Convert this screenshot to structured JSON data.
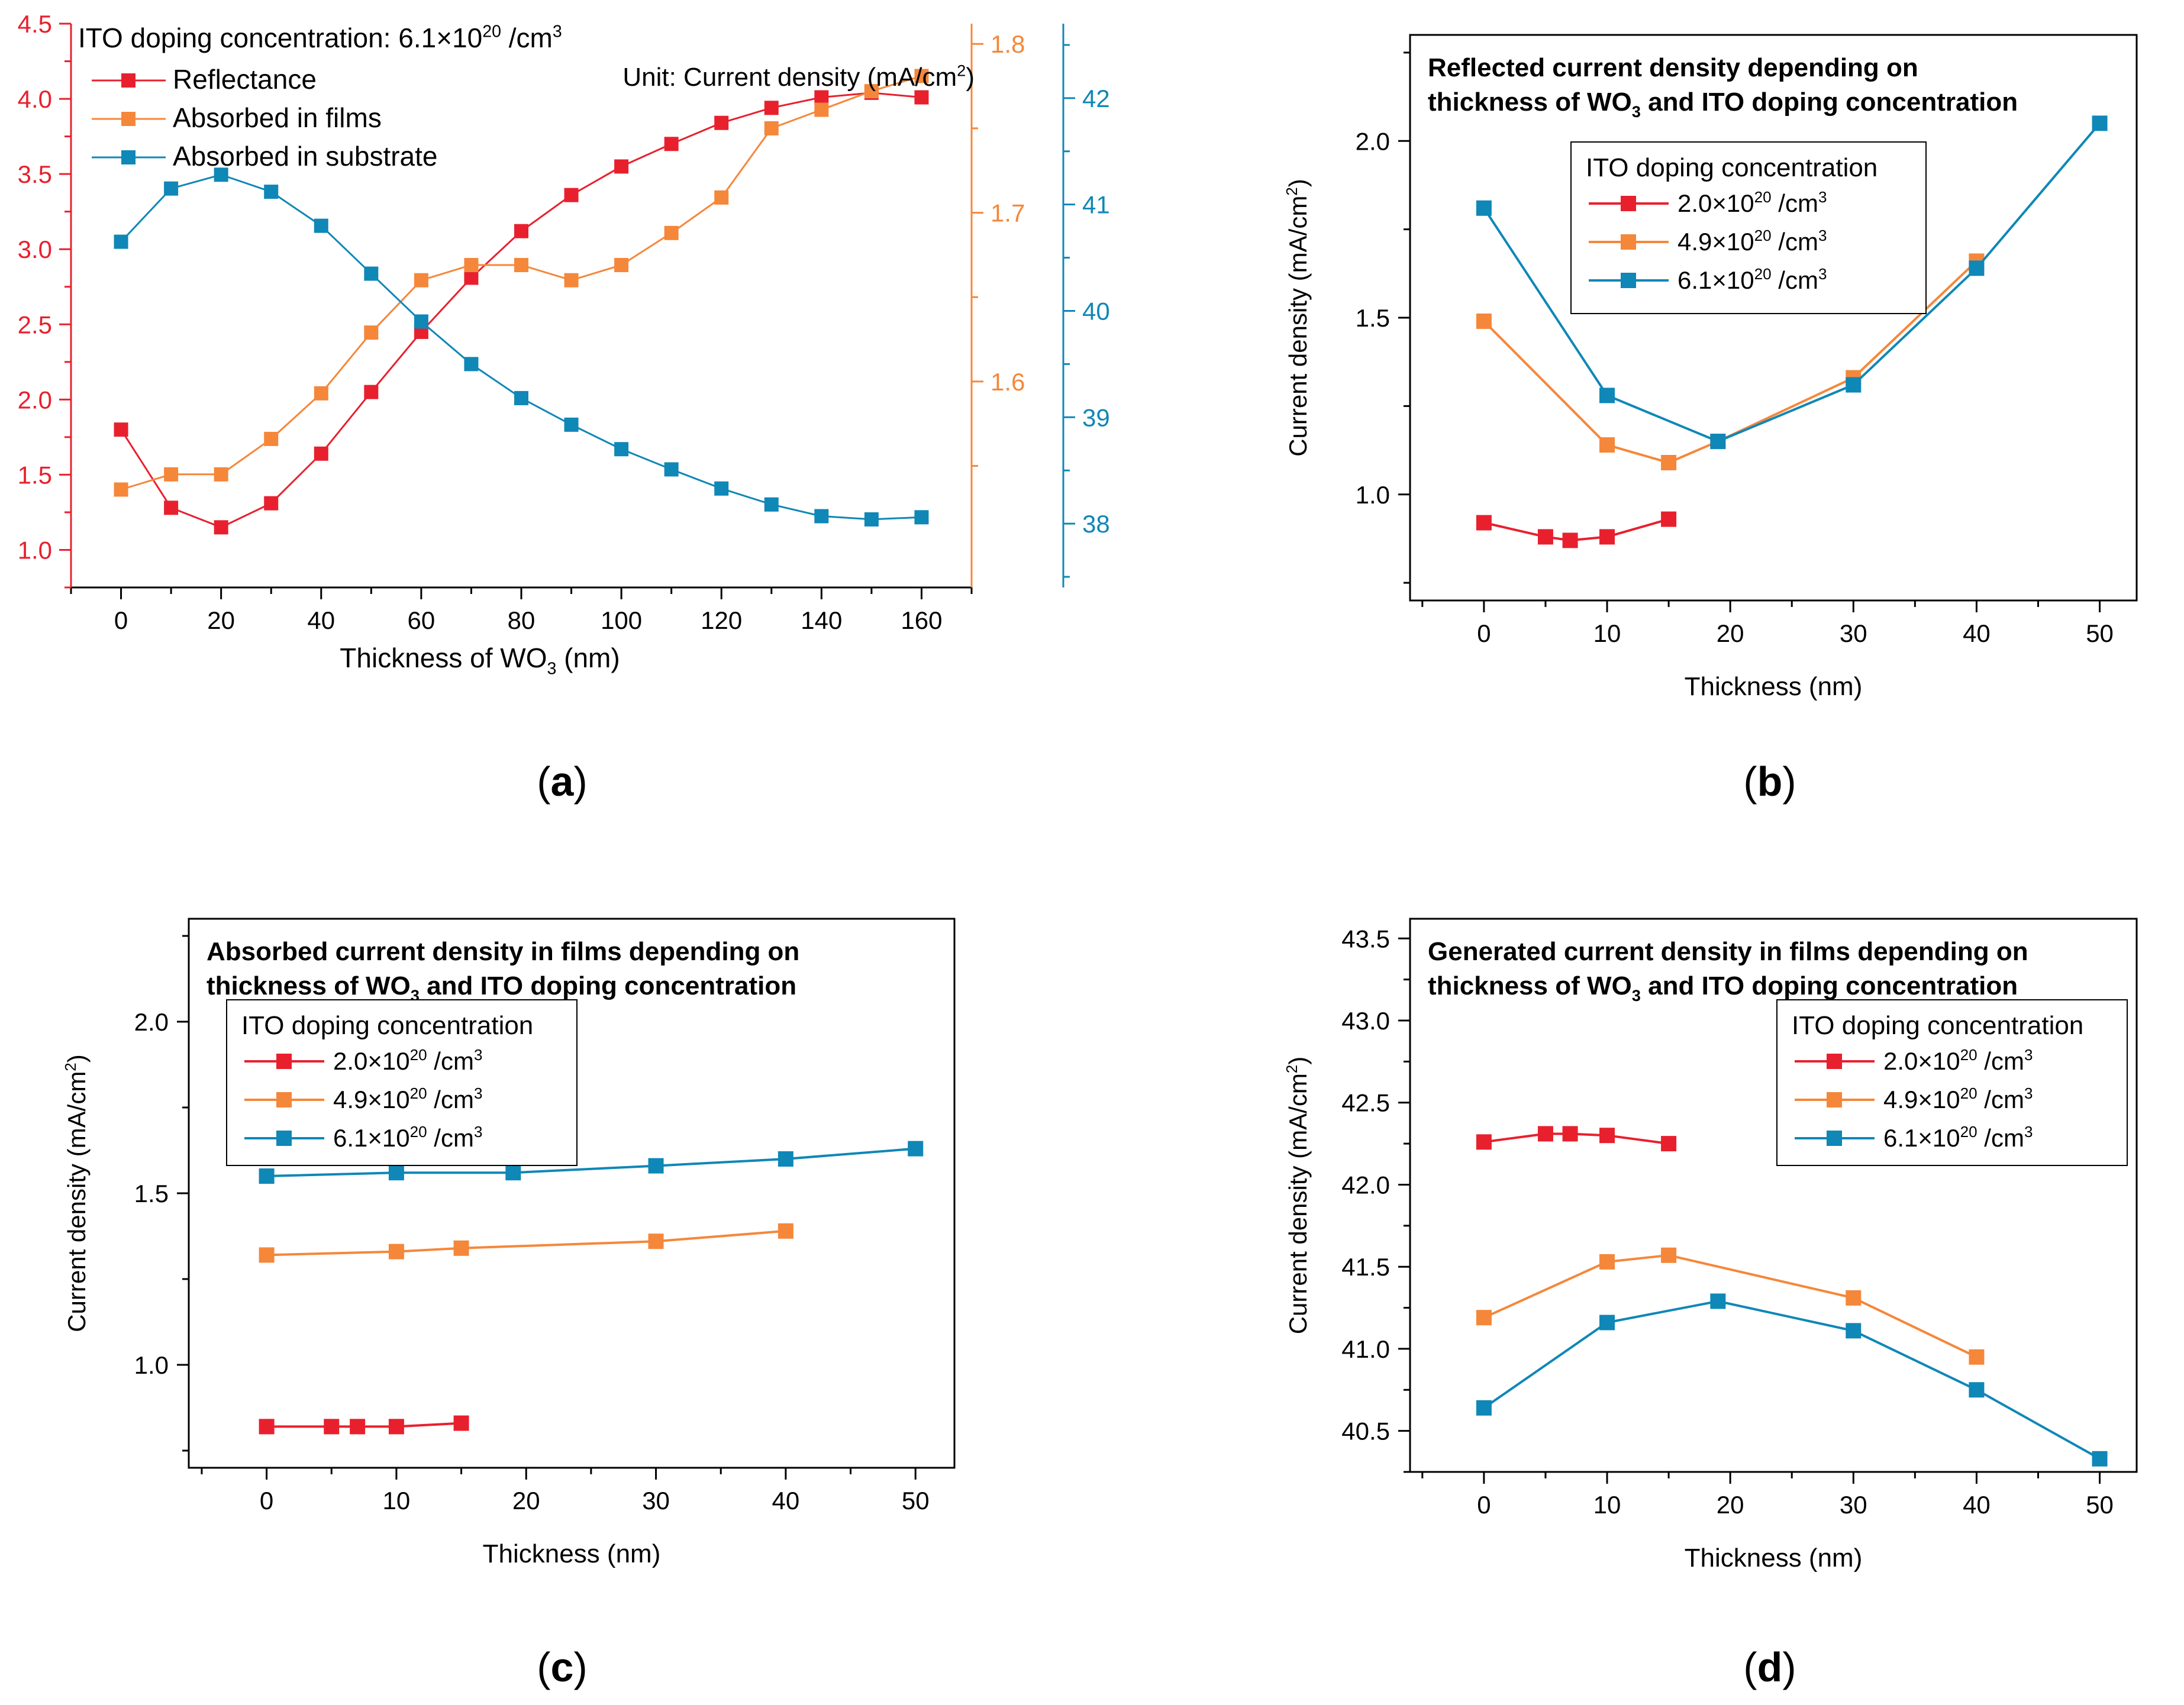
{
  "colors": {
    "red": "#e8202e",
    "orange": "#f5873a",
    "blue": "#0f87b7",
    "axis": "#000000",
    "panel_a_left_axis": "#e8202e",
    "panel_a_right_axis1": "#f5873a",
    "panel_a_right_axis2": "#0f87b7"
  },
  "chart_data": [
    {
      "id": "a",
      "type": "line",
      "caption_letter": "a",
      "caption": "(a)",
      "annotation": {
        "prefix": "ITO doping concentration: 6.1×10",
        "sup": "20",
        "suffix": " /cm",
        "sup2": "3"
      },
      "unit_note": {
        "text": "Unit: Current density (mA/cm",
        "sup": "2",
        "close": ")"
      },
      "xlabel": {
        "text": "Thickness of WO",
        "sub": "3",
        "after": " (nm)"
      },
      "xlim": [
        -10,
        170
      ],
      "x_ticks": [
        "0",
        "20",
        "40",
        "60",
        "80",
        "100",
        "120",
        "140",
        "160"
      ],
      "axes": {
        "left": {
          "lim": [
            0.75,
            4.5
          ],
          "ticks": [
            "1.0",
            "1.5",
            "2.0",
            "2.5",
            "3.0",
            "3.5",
            "4.0",
            "4.5"
          ],
          "color_key": "red"
        },
        "right1": {
          "lim": [
            1.478,
            1.812
          ],
          "ticks": [
            "1.6",
            "1.7",
            "1.8"
          ],
          "color_key": "orange"
        },
        "right2": {
          "lim": [
            37.4,
            42.7
          ],
          "ticks": [
            "38",
            "39",
            "40",
            "41",
            "42"
          ],
          "color_key": "blue"
        }
      },
      "series": [
        {
          "name": "Reflectance",
          "color_key": "red",
          "axis": "left",
          "x": [
            0,
            10,
            20,
            30,
            40,
            50,
            60,
            70,
            80,
            90,
            100,
            110,
            120,
            130,
            140,
            150,
            160
          ],
          "y": [
            1.8,
            1.28,
            1.15,
            1.31,
            1.64,
            2.05,
            2.45,
            2.81,
            3.12,
            3.36,
            3.55,
            3.7,
            3.84,
            3.94,
            4.01,
            4.04,
            4.01
          ]
        },
        {
          "name": "Absorbed in films",
          "color_key": "orange",
          "axis": "right1",
          "x": [
            0,
            10,
            20,
            30,
            40,
            50,
            60,
            70,
            80,
            90,
            100,
            110,
            120,
            130,
            140,
            150,
            160
          ],
          "y": [
            1.536,
            1.545,
            1.545,
            1.566,
            1.593,
            1.629,
            1.66,
            1.669,
            1.669,
            1.66,
            1.669,
            1.688,
            1.709,
            1.75,
            1.761,
            1.772,
            1.781
          ]
        },
        {
          "name": "Absorbed in substrate",
          "color_key": "blue",
          "axis": "right2",
          "x": [
            0,
            10,
            20,
            30,
            40,
            50,
            60,
            70,
            80,
            90,
            100,
            110,
            120,
            130,
            140,
            150,
            160
          ],
          "y": [
            40.65,
            41.15,
            41.28,
            41.12,
            40.8,
            40.35,
            39.9,
            39.5,
            39.18,
            38.93,
            38.7,
            38.51,
            38.33,
            38.18,
            38.07,
            38.04,
            38.06
          ]
        }
      ]
    },
    {
      "id": "b",
      "type": "line",
      "caption_letter": "b",
      "caption": "(b)",
      "title_line1": "Reflected current density depending on",
      "title_line2": {
        "pre": "thickness of WO",
        "sub": "3",
        "post": " and ITO doping concentration"
      },
      "ylabel": {
        "text": "Current density (mA/cm",
        "sup": "2",
        "close": ")"
      },
      "xlabel": "Thickness (nm)",
      "legend_title": "ITO doping concentration",
      "xlim": [
        -6,
        53
      ],
      "ylim": [
        0.7,
        2.3
      ],
      "x_ticks": [
        "0",
        "10",
        "20",
        "30",
        "40",
        "50"
      ],
      "y_ticks": [
        "1.0",
        "1.5",
        "2.0"
      ],
      "series": [
        {
          "name": "2.0×10^20 /cm^3",
          "label_pre": "2.0×10",
          "label_sup": "20",
          "label_post": " /cm",
          "label_sup2": "3",
          "color_key": "red",
          "x": [
            0,
            5,
            7,
            10,
            15
          ],
          "y": [
            0.92,
            0.88,
            0.87,
            0.88,
            0.93
          ]
        },
        {
          "name": "4.9×10^20 /cm^3",
          "label_pre": "4.9×10",
          "label_sup": "20",
          "label_post": " /cm",
          "label_sup2": "3",
          "color_key": "orange",
          "x": [
            0,
            10,
            15,
            19,
            30,
            40
          ],
          "y": [
            1.49,
            1.14,
            1.09,
            1.15,
            1.33,
            1.66
          ]
        },
        {
          "name": "6.1×10^20 /cm^3",
          "label_pre": "6.1×10",
          "label_sup": "20",
          "label_post": " /cm",
          "label_sup2": "3",
          "color_key": "blue",
          "x": [
            0,
            10,
            19,
            30,
            40,
            50
          ],
          "y": [
            1.81,
            1.28,
            1.15,
            1.31,
            1.64,
            2.05
          ]
        }
      ]
    },
    {
      "id": "c",
      "type": "line",
      "caption_letter": "c",
      "caption": "(c)",
      "title_line1": "Absorbed current density in films depending on",
      "title_line2": {
        "pre": "thickness of WO",
        "sub": "3",
        "post": " and ITO doping concentration"
      },
      "ylabel": {
        "text": "Current density (mA/cm",
        "sup": "2",
        "close": ")"
      },
      "xlabel": "Thickness (nm)",
      "legend_title": "ITO doping concentration",
      "xlim": [
        -6,
        53
      ],
      "ylim": [
        0.7,
        2.3
      ],
      "x_ticks": [
        "0",
        "10",
        "20",
        "30",
        "40",
        "50"
      ],
      "y_ticks": [
        "1.0",
        "1.5",
        "2.0"
      ],
      "series": [
        {
          "name": "2.0×10^20 /cm^3",
          "label_pre": "2.0×10",
          "label_sup": "20",
          "label_post": " /cm",
          "label_sup2": "3",
          "color_key": "red",
          "x": [
            0,
            5,
            7,
            10,
            15
          ],
          "y": [
            0.82,
            0.82,
            0.82,
            0.82,
            0.83
          ]
        },
        {
          "name": "4.9×10^20 /cm^3",
          "label_pre": "4.9×10",
          "label_sup": "20",
          "label_post": " /cm",
          "label_sup2": "3",
          "color_key": "orange",
          "x": [
            0,
            10,
            15,
            30,
            40
          ],
          "y": [
            1.32,
            1.33,
            1.34,
            1.36,
            1.39
          ]
        },
        {
          "name": "6.1×10^20 /cm^3",
          "label_pre": "6.1×10",
          "label_sup": "20",
          "label_post": " /cm",
          "label_sup2": "3",
          "color_key": "blue",
          "x": [
            0,
            10,
            19,
            30,
            40,
            50
          ],
          "y": [
            1.55,
            1.56,
            1.56,
            1.58,
            1.6,
            1.63
          ]
        }
      ]
    },
    {
      "id": "d",
      "type": "line",
      "caption_letter": "d",
      "caption": "(d)",
      "title_line1": "Generated current density in films depending on",
      "title_line2": {
        "pre": "thickness of WO",
        "sub": "3",
        "post": " and ITO doping concentration"
      },
      "ylabel": {
        "text": "Current density (mA/cm",
        "sup": "2",
        "close": ")"
      },
      "xlabel": "Thickness (nm)",
      "legend_title": "ITO doping concentration",
      "xlim": [
        -6,
        53
      ],
      "ylim": [
        40.25,
        43.62
      ],
      "x_ticks": [
        "0",
        "10",
        "20",
        "30",
        "40",
        "50"
      ],
      "y_ticks": [
        "40.5",
        "41.0",
        "41.5",
        "42.0",
        "42.5",
        "43.0",
        "43.5"
      ],
      "series": [
        {
          "name": "2.0×10^20 /cm^3",
          "label_pre": "2.0×10",
          "label_sup": "20",
          "label_post": " /cm",
          "label_sup2": "3",
          "color_key": "red",
          "x": [
            0,
            5,
            7,
            10,
            15
          ],
          "y": [
            42.26,
            42.31,
            42.31,
            42.3,
            42.25
          ]
        },
        {
          "name": "4.9×10^20 /cm^3",
          "label_pre": "4.9×10",
          "label_sup": "20",
          "label_post": " /cm",
          "label_sup2": "3",
          "color_key": "orange",
          "x": [
            0,
            10,
            15,
            30,
            40
          ],
          "y": [
            41.19,
            41.53,
            41.57,
            41.31,
            40.95
          ]
        },
        {
          "name": "6.1×10^20 /cm^3",
          "label_pre": "6.1×10",
          "label_sup": "20",
          "label_post": " /cm",
          "label_sup2": "3",
          "color_key": "blue",
          "x": [
            0,
            10,
            19,
            30,
            40,
            50
          ],
          "y": [
            40.64,
            41.16,
            41.29,
            41.11,
            40.75,
            40.33
          ]
        }
      ]
    }
  ]
}
